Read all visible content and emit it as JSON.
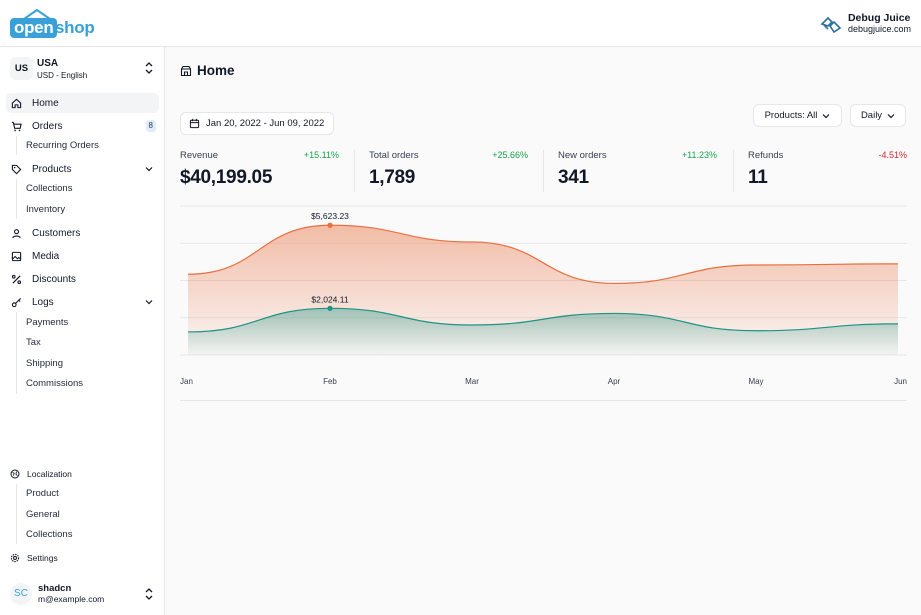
{
  "header": {
    "logo_open": "open",
    "logo_shop": "shop",
    "brand_name": "Debug Juice",
    "brand_url": "debugjuice.com"
  },
  "store": {
    "badge": "US",
    "name": "USA",
    "sub": "USD - English"
  },
  "sidebar": {
    "home": "Home",
    "orders": "Orders",
    "orders_count": "8",
    "recurring_orders": "Recurring Orders",
    "products": "Products",
    "collections": "Collections",
    "inventory": "Inventory",
    "customers": "Customers",
    "media": "Media",
    "discounts": "Discounts",
    "logs": "Logs",
    "payments": "Payments",
    "tax": "Tax",
    "shipping": "Shipping",
    "commissions": "Commissions",
    "localization": "Localization",
    "loc_product": "Product",
    "loc_general": "General",
    "loc_collections": "Collections",
    "settings": "Settings"
  },
  "user": {
    "initials": "SC",
    "name": "shadcn",
    "email": "m@example.com"
  },
  "main": {
    "title": "Home",
    "date_range": "Jan 20, 2022 - Jun 09, 2022",
    "products_filter": "Products: All",
    "period": "Daily"
  },
  "stats": [
    {
      "label": "Revenue",
      "delta": "+15.11%",
      "value": "$40,199.05"
    },
    {
      "label": "Total orders",
      "delta": "+25.66%",
      "value": "1,789"
    },
    {
      "label": "New orders",
      "delta": "+11.23%",
      "value": "341"
    },
    {
      "label": "Refunds",
      "delta": "-4.51%",
      "value": "11"
    }
  ],
  "colors": {
    "accent_orange": "#e8703f",
    "accent_teal": "#1f9384",
    "positive": "#16a34a",
    "negative": "#dc2626",
    "brand_blue": "#3aa0d8"
  },
  "chart_data": {
    "type": "area",
    "categories": [
      "Jan",
      "Feb",
      "Mar",
      "Apr",
      "May",
      "Jun"
    ],
    "series": [
      {
        "values": [
          3500,
          5623.23,
          4900,
          3100,
          3900,
          3950
        ]
      },
      {
        "values": [
          1000,
          2024.11,
          1300,
          1800,
          1050,
          1350
        ]
      }
    ],
    "annotations": [
      {
        "series": 0,
        "category": "Feb",
        "label": "$5,623.23"
      },
      {
        "series": 1,
        "category": "Feb",
        "label": "$2,024.11"
      }
    ],
    "ylim": [
      0,
      6500
    ],
    "grid": true,
    "xlabel": "",
    "ylabel": ""
  }
}
